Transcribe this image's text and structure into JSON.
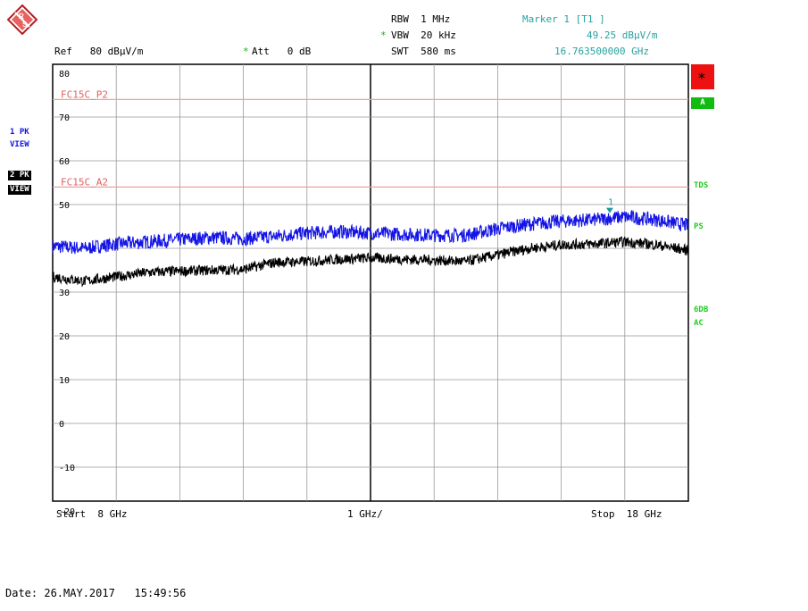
{
  "header": {
    "rbw": "RBW  1 MHz",
    "vbw": "VBW  20 kHz",
    "swt": "SWT  580 ms",
    "vbw_star": "*",
    "att_star": "*",
    "ref": "Ref   80 dBµV/m",
    "att": "Att   0 dB",
    "marker_title": "Marker 1 [T1 ]",
    "marker_level": "49.25 dBµV/m",
    "marker_freq": "16.763500000 GHz"
  },
  "left_labels": {
    "trace1_a": "1 PK",
    "trace1_b": "VIEW",
    "trace2_a": "2 PK",
    "trace2_b": "VIEW"
  },
  "right_labels": {
    "star": "∗",
    "a": "A",
    "tds": "TDS",
    "ps": "PS",
    "db6": "6DB",
    "ac": "AC"
  },
  "footer": {
    "start": "Start  8 GHz",
    "div": "1 GHz/",
    "stop": "Stop  18 GHz",
    "date": "Date: 26.MAY.2017   15:49:56"
  },
  "colors": {
    "trace1": "#1414e6",
    "trace2": "#000000",
    "limit": "#f0a0a0",
    "marker": "#1a9a9a"
  },
  "chart_data": {
    "type": "line",
    "x_unit": "GHz",
    "y_unit": "dBuV/m",
    "xlim": [
      8,
      18
    ],
    "ylim": [
      -22,
      80
    ],
    "y_ticks": [
      80,
      70,
      60,
      50,
      40,
      30,
      20,
      10,
      0,
      -10,
      -20
    ],
    "y_tick_labels": [
      "80",
      "70",
      "60",
      "50",
      "",
      "30",
      "20",
      "10",
      "0",
      "-10",
      "-20"
    ],
    "grid": true,
    "limit_lines": [
      {
        "name": "FC15C_P2",
        "value": 74
      },
      {
        "name": "FC15C_A2",
        "value": 54
      }
    ],
    "series": [
      {
        "x": [
          8,
          8.5,
          9,
          9.5,
          10,
          10.5,
          11,
          11.5,
          12,
          12.5,
          13,
          13.5,
          14,
          14.5,
          15,
          15.5,
          16,
          16.5,
          17,
          17.5,
          18
        ],
        "y": [
          40.5,
          40.0,
          41.0,
          41.5,
          42.0,
          42.5,
          42.2,
          42.8,
          43.5,
          43.8,
          43.5,
          43.2,
          43.0,
          43.0,
          44.5,
          45.5,
          46.2,
          46.5,
          47.2,
          46.5,
          45.2
        ]
      },
      {
        "x": [
          8,
          8.5,
          9,
          9.5,
          10,
          10.5,
          11,
          11.5,
          12,
          12.5,
          13,
          13.5,
          14,
          14.5,
          15,
          15.5,
          16,
          16.5,
          17,
          17.5,
          18
        ],
        "y": [
          33.5,
          32.5,
          33.5,
          34.5,
          34.8,
          35.0,
          35.2,
          36.8,
          37.0,
          37.5,
          37.8,
          37.5,
          37.3,
          37.0,
          38.5,
          40.0,
          40.8,
          41.0,
          41.5,
          40.8,
          39.5
        ]
      }
    ],
    "marker": {
      "label": "1",
      "x": 16.7635,
      "y": 49.25
    }
  }
}
